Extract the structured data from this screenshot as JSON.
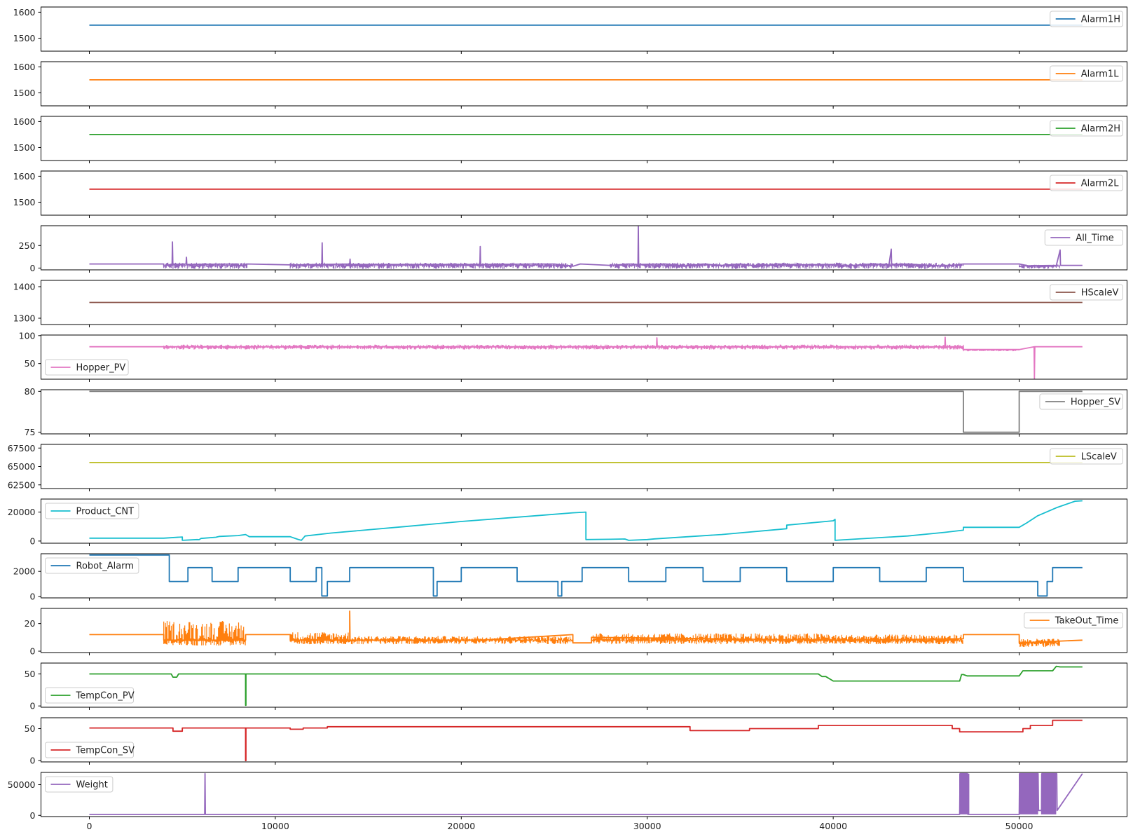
{
  "figure": {
    "x_axis": {
      "range": [
        -2600,
        55800
      ],
      "ticks": [
        "0",
        "10000",
        "20000",
        "30000",
        "40000",
        "50000"
      ],
      "tick_values": [
        0,
        10000,
        20000,
        30000,
        40000,
        50000
      ]
    }
  },
  "chart_data": [
    {
      "type": "line",
      "series": [
        {
          "name": "Alarm1H",
          "color": "#1f77b4"
        }
      ],
      "ylim": [
        1450,
        1620
      ],
      "yticks": [
        "1500",
        "1600"
      ],
      "ytick_values": [
        1500,
        1600
      ],
      "legend": "top-right",
      "x": [
        0,
        53400
      ],
      "y": [
        1550,
        1550
      ]
    },
    {
      "type": "line",
      "series": [
        {
          "name": "Alarm1L",
          "color": "#ff7f0e"
        }
      ],
      "ylim": [
        1450,
        1620
      ],
      "yticks": [
        "1500",
        "1600"
      ],
      "ytick_values": [
        1500,
        1600
      ],
      "legend": "top-right",
      "x": [
        0,
        53400
      ],
      "y": [
        1550,
        1550
      ]
    },
    {
      "type": "line",
      "series": [
        {
          "name": "Alarm2H",
          "color": "#2ca02c"
        }
      ],
      "ylim": [
        1450,
        1620
      ],
      "yticks": [
        "1500",
        "1600"
      ],
      "ytick_values": [
        1500,
        1600
      ],
      "legend": "top-right",
      "x": [
        0,
        53400
      ],
      "y": [
        1550,
        1550
      ]
    },
    {
      "type": "line",
      "series": [
        {
          "name": "Alarm2L",
          "color": "#d62728"
        }
      ],
      "ylim": [
        1450,
        1620
      ],
      "yticks": [
        "1500",
        "1600"
      ],
      "ytick_values": [
        1500,
        1600
      ],
      "legend": "top-right",
      "x": [
        0,
        53400
      ],
      "y": [
        1550,
        1550
      ]
    },
    {
      "type": "line",
      "series": [
        {
          "name": "All_Time",
          "color": "#9467bd"
        }
      ],
      "ylim": [
        -20,
        470
      ],
      "yticks": [
        "0",
        "250"
      ],
      "ytick_values": [
        0,
        250
      ],
      "legend": "top-right",
      "x": [
        0,
        4000,
        4000,
        4450,
        4470,
        4490,
        5200,
        5220,
        5240,
        8000,
        8020,
        8500,
        10800,
        12500,
        12520,
        12540,
        14000,
        14020,
        14040,
        21000,
        21020,
        21040,
        25000,
        26000,
        26400,
        28000,
        29000,
        29500,
        29520,
        29540,
        31000,
        32000,
        33000,
        34000,
        35000,
        36000,
        37000,
        38000,
        40000,
        40500,
        42000,
        43000,
        43120,
        43140,
        44000,
        46000,
        47000,
        50000,
        50500,
        52000,
        52200,
        52220,
        52240,
        53400
      ],
      "y": [
        45,
        45,
        20,
        45,
        290,
        40,
        45,
        120,
        40,
        45,
        20,
        45,
        35,
        40,
        280,
        40,
        45,
        100,
        40,
        40,
        240,
        40,
        45,
        20,
        45,
        30,
        45,
        40,
        460,
        40,
        45,
        20,
        45,
        30,
        45,
        20,
        45,
        35,
        40,
        20,
        45,
        40,
        210,
        40,
        45,
        20,
        45,
        45,
        25,
        30,
        200,
        30,
        30,
        30
      ]
    },
    {
      "type": "line",
      "series": [
        {
          "name": "HScaleV",
          "color": "#8c564b"
        }
      ],
      "ylim": [
        1280,
        1420
      ],
      "yticks": [
        "1300",
        "1400"
      ],
      "ytick_values": [
        1300,
        1400
      ],
      "legend": "top-right",
      "x": [
        0,
        53400
      ],
      "y": [
        1350,
        1350
      ]
    },
    {
      "type": "line",
      "series": [
        {
          "name": "Hopper_PV",
          "color": "#e377c2"
        }
      ],
      "ylim": [
        22,
        101
      ],
      "yticks": [
        "50",
        "100"
      ],
      "ytick_values": [
        50,
        100
      ],
      "legend": "bottom-left",
      "x": [
        0,
        30500,
        30520,
        30540,
        46000,
        46020,
        46040,
        47000,
        47000,
        50000,
        50800,
        50820,
        50840,
        53400
      ],
      "y": [
        80,
        80,
        96,
        80,
        80,
        97,
        80,
        80,
        75,
        75,
        80,
        23,
        80,
        80
      ]
    },
    {
      "type": "line",
      "series": [
        {
          "name": "Hopper_SV",
          "color": "#7f7f7f"
        }
      ],
      "ylim": [
        74.8,
        80.2
      ],
      "yticks": [
        "75",
        "80"
      ],
      "ytick_values": [
        75,
        80
      ],
      "legend": "top-right",
      "x": [
        0,
        47000,
        47000,
        50000,
        50000,
        53400
      ],
      "y": [
        80,
        80,
        75,
        75,
        80,
        80
      ]
    },
    {
      "type": "line",
      "series": [
        {
          "name": "LScaleV",
          "color": "#bcbd22"
        }
      ],
      "ylim": [
        62000,
        68000
      ],
      "yticks": [
        "62500",
        "65000",
        "67500"
      ],
      "ytick_values": [
        62500,
        65000,
        67500
      ],
      "legend": "top-right",
      "x": [
        0,
        53400
      ],
      "y": [
        65536,
        65536
      ]
    },
    {
      "type": "line",
      "series": [
        {
          "name": "Product_CNT",
          "color": "#17becf"
        }
      ],
      "ylim": [
        -1500,
        29000
      ],
      "yticks": [
        "0",
        "20000"
      ],
      "ytick_values": [
        0,
        20000
      ],
      "legend": "top-left",
      "x": [
        0,
        4000,
        5000,
        5000,
        5800,
        5900,
        6000,
        6800,
        7000,
        8000,
        8400,
        8600,
        10800,
        11200,
        11400,
        11600,
        13000,
        17000,
        20000,
        24000,
        26000,
        26700,
        26700,
        28000,
        28800,
        29000,
        30000,
        30400,
        34000,
        37500,
        37500,
        40000,
        40100,
        40100,
        44000,
        46000,
        47000,
        47000,
        50000,
        50400,
        51000,
        52000,
        53000,
        53400
      ],
      "y": [
        2000,
        2000,
        2800,
        500,
        1000,
        900,
        1800,
        2600,
        3200,
        3800,
        4500,
        3000,
        3000,
        1200,
        500,
        3500,
        5500,
        10000,
        13500,
        17500,
        19500,
        20000,
        1000,
        1200,
        1400,
        500,
        1000,
        1500,
        4500,
        8500,
        11000,
        14000,
        15000,
        500,
        3500,
        6000,
        7500,
        9500,
        9500,
        12500,
        17500,
        23000,
        27500,
        27800
      ]
    },
    {
      "type": "line",
      "series": [
        {
          "name": "Robot_Alarm",
          "color": "#1f77b4"
        }
      ],
      "ylim": [
        -100,
        3400
      ],
      "yticks": [
        "0",
        "2000"
      ],
      "ytick_values": [
        0,
        2000
      ],
      "legend": "top-left",
      "x": [
        0,
        4300,
        4300,
        5300,
        5300,
        6600,
        6600,
        8000,
        8000,
        10800,
        10800,
        12200,
        12200,
        12500,
        12500,
        12800,
        12800,
        14000,
        14000,
        18500,
        18500,
        18700,
        18700,
        20000,
        20000,
        23000,
        23000,
        25200,
        25200,
        25400,
        25400,
        26500,
        26500,
        29000,
        29000,
        31000,
        31000,
        33000,
        33000,
        35000,
        35000,
        37500,
        37500,
        40000,
        40000,
        42500,
        42500,
        45000,
        45000,
        47000,
        47000,
        51000,
        51000,
        51500,
        51500,
        51800,
        51800,
        52000,
        52000,
        53400
      ],
      "y": [
        3300,
        3300,
        1200,
        1200,
        2300,
        2300,
        1200,
        1200,
        2300,
        2300,
        1200,
        1200,
        2300,
        2300,
        50,
        50,
        1200,
        1200,
        2300,
        2300,
        50,
        50,
        1200,
        1200,
        2300,
        2300,
        1200,
        1200,
        50,
        50,
        1200,
        1200,
        2300,
        2300,
        1200,
        1200,
        2300,
        2300,
        1200,
        1200,
        2300,
        2300,
        1200,
        1200,
        2300,
        2300,
        1200,
        1200,
        2300,
        2300,
        1200,
        1200,
        50,
        50,
        1200,
        1200,
        2300,
        2300,
        2300,
        2300
      ]
    },
    {
      "type": "line",
      "series": [
        {
          "name": "TakeOut_Time",
          "color": "#ff7f0e"
        }
      ],
      "ylim": [
        -1,
        31
      ],
      "yticks": [
        "0",
        "20"
      ],
      "ytick_values": [
        0,
        20
      ],
      "legend": "top-right",
      "x": [
        0,
        4000,
        4000,
        8400,
        8400,
        10800,
        10800,
        14000,
        14000,
        14020,
        14040,
        21000,
        26000,
        26000,
        27000,
        27000,
        40000,
        47000,
        47000,
        50000,
        50000,
        53400
      ],
      "y": [
        12,
        12,
        8,
        8,
        12,
        12,
        8,
        8,
        29,
        8,
        8,
        8,
        12,
        6,
        6,
        10,
        8,
        9,
        12,
        12,
        6,
        8
      ]
    },
    {
      "type": "line",
      "series": [
        {
          "name": "TempCon_PV",
          "color": "#2ca02c"
        }
      ],
      "ylim": [
        -2,
        67
      ],
      "yticks": [
        "0",
        "50"
      ],
      "ytick_values": [
        0,
        50
      ],
      "legend": "bottom-left",
      "x": [
        0,
        4400,
        4500,
        4700,
        4800,
        8400,
        8400,
        8420,
        8420,
        39200,
        39400,
        39600,
        40000,
        46800,
        46900,
        47000,
        47200,
        50000,
        50200,
        51800,
        52000,
        52200,
        53400
      ],
      "y": [
        50,
        50,
        45,
        45,
        50,
        50,
        1,
        1,
        50,
        50,
        46,
        46,
        39,
        39,
        49,
        49,
        47,
        47,
        55,
        55,
        62,
        61,
        61
      ]
    },
    {
      "type": "line",
      "series": [
        {
          "name": "TempCon_SV",
          "color": "#d62728"
        }
      ],
      "ylim": [
        -2,
        67
      ],
      "yticks": [
        "0",
        "50"
      ],
      "ytick_values": [
        0,
        50
      ],
      "legend": "bottom-left",
      "x": [
        0,
        4500,
        4500,
        5000,
        5000,
        8400,
        8400,
        8420,
        8420,
        10800,
        10800,
        11500,
        11500,
        12800,
        12800,
        32300,
        32300,
        35500,
        35500,
        39200,
        39200,
        46400,
        46400,
        46800,
        46800,
        50200,
        50200,
        50600,
        50600,
        51800,
        51800,
        53400
      ],
      "y": [
        51,
        51,
        46,
        46,
        51,
        51,
        0,
        0,
        51,
        51,
        49,
        49,
        51,
        51,
        53,
        53,
        47,
        47,
        50,
        50,
        55,
        55,
        50,
        50,
        45,
        45,
        50,
        50,
        55,
        55,
        63,
        63
      ]
    },
    {
      "type": "line",
      "series": [
        {
          "name": "Weight",
          "color": "#9467bd"
        }
      ],
      "ylim": [
        -2000,
        70000
      ],
      "yticks": [
        "0",
        "50000"
      ],
      "ytick_values": [
        0,
        50000
      ],
      "legend": "top-left",
      "x": [
        0,
        6200,
        6220,
        6240,
        6260,
        46800,
        46820,
        46840,
        47200,
        47220,
        47240,
        50000,
        50020,
        50040,
        51000,
        51020,
        51040,
        51200,
        51220,
        51240,
        52000,
        52020,
        52040,
        53400
      ],
      "y": [
        1500,
        1500,
        68000,
        1500,
        1500,
        1500,
        68000,
        68000,
        68000,
        68000,
        1500,
        1500,
        68000,
        68000,
        68000,
        68000,
        8000,
        8000,
        68000,
        68000,
        68000,
        68000,
        8000,
        68000
      ]
    }
  ]
}
